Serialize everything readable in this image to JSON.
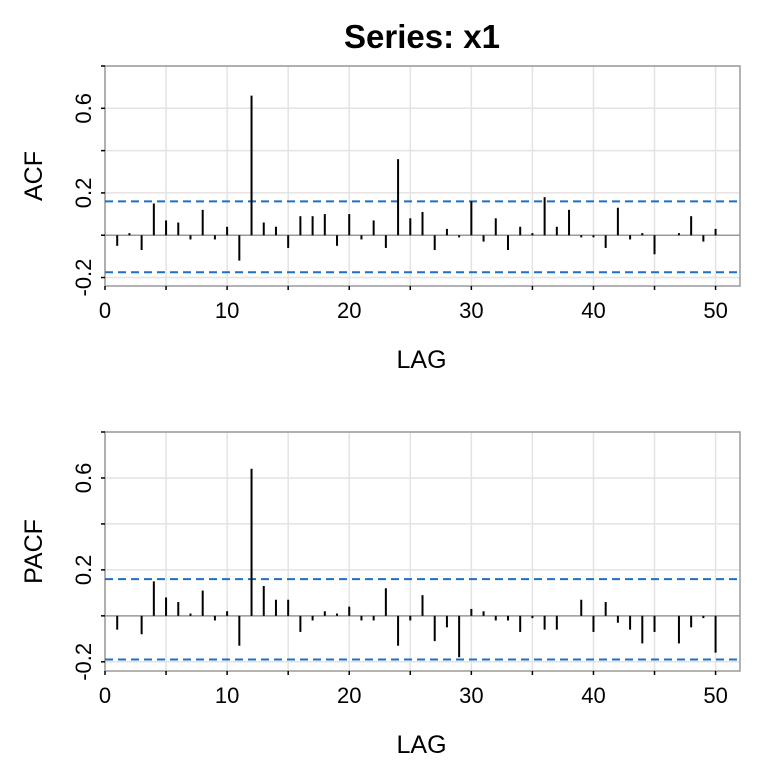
{
  "title": "Series:  x1",
  "colors": {
    "ci": "#1f6fc5",
    "spike": "#000000",
    "grid": "#e3e3e3",
    "box": "#9a9a9a"
  },
  "chart_data": [
    {
      "type": "bar",
      "ylabel": "ACF",
      "xlabel": "LAG",
      "xlim": [
        0,
        52
      ],
      "ylim": [
        -0.24,
        0.8
      ],
      "x_ticks": [
        "0",
        "10",
        "20",
        "30",
        "40",
        "50"
      ],
      "y_ticks": [
        "-0.2",
        "0.2",
        "0.6"
      ],
      "ci": [
        0.16,
        -0.175
      ],
      "grid": true,
      "lags": [
        1,
        2,
        3,
        4,
        5,
        6,
        7,
        8,
        9,
        10,
        11,
        12,
        13,
        14,
        15,
        16,
        17,
        18,
        19,
        20,
        21,
        22,
        23,
        24,
        25,
        26,
        27,
        28,
        29,
        30,
        31,
        32,
        33,
        34,
        35,
        36,
        37,
        38,
        39,
        40,
        41,
        42,
        43,
        44,
        45,
        46,
        47,
        48,
        49,
        50
      ],
      "values": [
        -0.05,
        0.01,
        -0.07,
        0.15,
        0.07,
        0.06,
        -0.02,
        0.12,
        -0.02,
        0.04,
        -0.12,
        0.66,
        0.06,
        0.04,
        -0.06,
        0.09,
        0.09,
        0.1,
        -0.05,
        0.1,
        -0.02,
        0.07,
        -0.06,
        0.36,
        0.08,
        0.11,
        -0.07,
        0.03,
        -0.01,
        0.16,
        -0.03,
        0.08,
        -0.07,
        0.04,
        0.01,
        0.18,
        0.04,
        0.12,
        -0.01,
        -0.01,
        -0.06,
        0.13,
        -0.02,
        0.01,
        -0.09,
        0.0,
        0.01,
        0.09,
        -0.03,
        0.03
      ]
    },
    {
      "type": "bar",
      "ylabel": "PACF",
      "xlabel": "LAG",
      "xlim": [
        0,
        52
      ],
      "ylim": [
        -0.24,
        0.8
      ],
      "x_ticks": [
        "0",
        "10",
        "20",
        "30",
        "40",
        "50"
      ],
      "y_ticks": [
        "-0.2",
        "0.2",
        "0.6"
      ],
      "ci": [
        0.16,
        -0.19
      ],
      "grid": true,
      "lags": [
        1,
        2,
        3,
        4,
        5,
        6,
        7,
        8,
        9,
        10,
        11,
        12,
        13,
        14,
        15,
        16,
        17,
        18,
        19,
        20,
        21,
        22,
        23,
        24,
        25,
        26,
        27,
        28,
        29,
        30,
        31,
        32,
        33,
        34,
        35,
        36,
        37,
        38,
        39,
        40,
        41,
        42,
        43,
        44,
        45,
        46,
        47,
        48,
        49,
        50
      ],
      "values": [
        -0.06,
        0.0,
        -0.08,
        0.15,
        0.08,
        0.06,
        0.01,
        0.11,
        -0.02,
        0.02,
        -0.13,
        0.64,
        0.13,
        0.07,
        0.07,
        -0.07,
        -0.02,
        0.02,
        0.01,
        0.04,
        -0.02,
        -0.02,
        0.12,
        -0.13,
        -0.02,
        0.09,
        -0.11,
        -0.05,
        -0.18,
        0.03,
        0.02,
        -0.02,
        -0.02,
        -0.07,
        -0.01,
        -0.06,
        -0.06,
        0.0,
        0.07,
        -0.07,
        0.06,
        -0.03,
        -0.06,
        -0.12,
        -0.07,
        0.0,
        -0.12,
        -0.05,
        -0.01,
        -0.16
      ]
    }
  ]
}
